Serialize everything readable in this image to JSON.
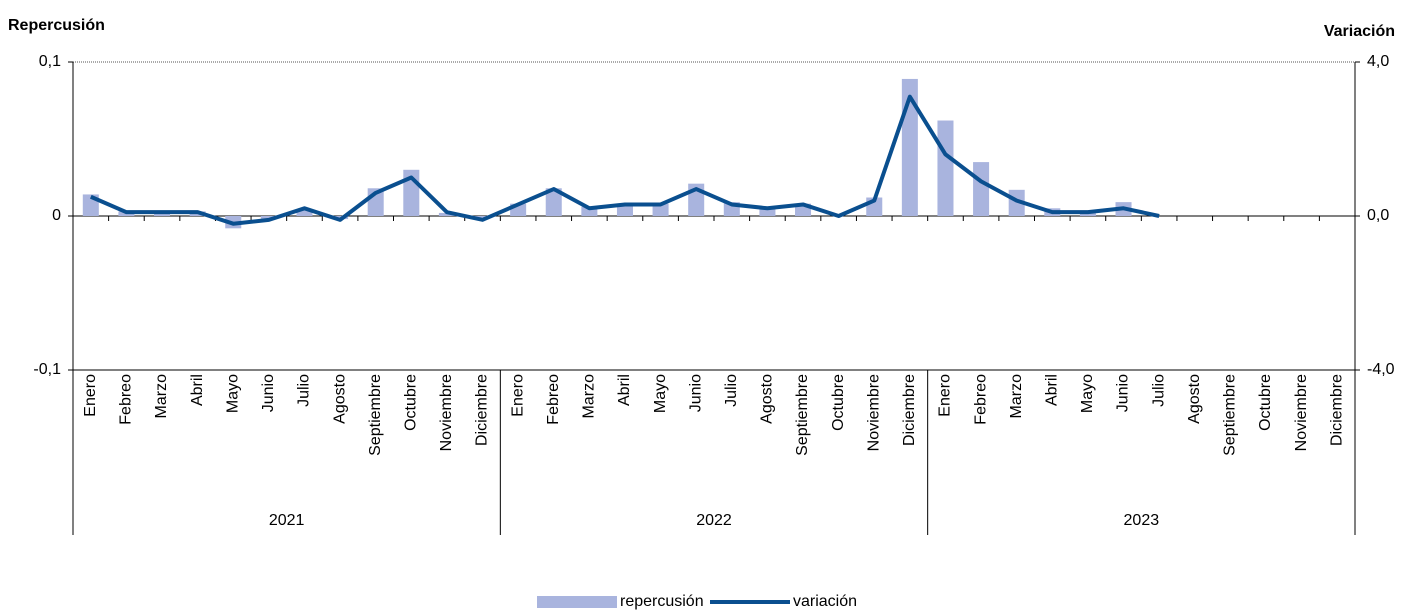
{
  "chart_data": {
    "type": "combo",
    "y_title": "Repercusión",
    "y2_title": "Variación",
    "categories": [
      "Enero",
      "Febreo",
      "Marzo",
      "Abril",
      "Mayo",
      "Junio",
      "Julio",
      "Agosto",
      "Septiembre",
      "Octubre",
      "Noviembre",
      "Diciembre",
      "Enero",
      "Febreo",
      "Marzo",
      "Abril",
      "Mayo",
      "Junio",
      "Julio",
      "Agosto",
      "Septiembre",
      "Octubre",
      "Noviembre",
      "Diciembre",
      "Enero",
      "Febreo",
      "Marzo",
      "Abril",
      "Mayo",
      "Junio",
      "Julio",
      "Agosto",
      "Septiembre",
      "Octubre",
      "Noviembre",
      "Diciembre"
    ],
    "groups": [
      "2021",
      "2022",
      "2023"
    ],
    "series": [
      {
        "name": "repercusión",
        "type": "bar",
        "color": "#a9b4de",
        "values": [
          0.014,
          0.003,
          0.003,
          0.003,
          -0.008,
          -0.002,
          0.004,
          -0.002,
          0.018,
          0.03,
          0.002,
          -0.001,
          0.008,
          0.018,
          0.006,
          0.008,
          0.008,
          0.021,
          0.009,
          0.006,
          0.008,
          0.0,
          0.012,
          0.089,
          0.062,
          0.035,
          0.017,
          0.005,
          0.003,
          0.009,
          null,
          null,
          null,
          null,
          null,
          null
        ]
      },
      {
        "name": "variación",
        "type": "line",
        "axis": "y2",
        "color": "#0a4f8f",
        "values": [
          0.5,
          0.1,
          0.1,
          0.1,
          -0.2,
          -0.1,
          0.2,
          -0.1,
          0.6,
          1.0,
          0.1,
          -0.1,
          0.3,
          0.7,
          0.2,
          0.3,
          0.3,
          0.7,
          0.3,
          0.2,
          0.3,
          0.0,
          0.4,
          3.1,
          1.6,
          0.9,
          0.4,
          0.1,
          0.1,
          0.2,
          0.0,
          null,
          null,
          null,
          null,
          null
        ]
      }
    ],
    "ylim": [
      -0.1,
      0.1
    ],
    "yticks": [
      {
        "value": -0.1,
        "label": "-0,1"
      },
      0,
      {
        "value": 0.1,
        "label": "0,1"
      }
    ],
    "y2lim": [
      -4,
      4
    ],
    "y2ticks": [
      {
        "value": -4,
        "label": "-4,0"
      },
      {
        "value": 0,
        "label": "0,0"
      },
      {
        "value": 4,
        "label": "4,0"
      }
    ],
    "legend": "bottom"
  }
}
